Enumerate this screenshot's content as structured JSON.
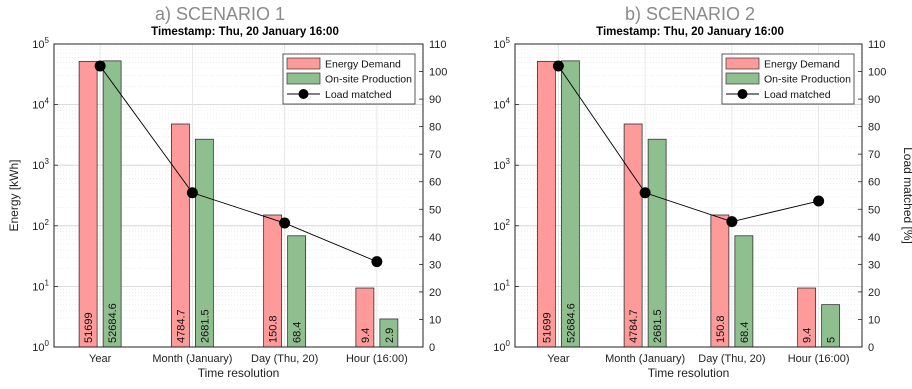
{
  "chart_data": [
    {
      "type": "bar",
      "title": "a)   SCENARIO 1",
      "subtitle": "Timestamp: Thu, 20 January 16:00",
      "xlabel": "Time resolution",
      "ylabel": "Energy [kWh]",
      "y2label": "",
      "categories": [
        "Year",
        "Month (January)",
        "Day (Thu, 20)",
        "Hour (16:00)"
      ],
      "yscale": "log",
      "ylim": [
        1,
        100000
      ],
      "yticks": [
        "10^0",
        "10^1",
        "10^2",
        "10^3",
        "10^4",
        "10^5"
      ],
      "y2lim": [
        0,
        110
      ],
      "y2ticks": [
        0,
        10,
        20,
        30,
        40,
        50,
        60,
        70,
        80,
        90,
        100,
        110
      ],
      "grid": true,
      "legend": "top-right",
      "series": [
        {
          "name": "Energy Demand",
          "color": "#ff9a9a",
          "values": [
            51699,
            4784.7,
            150.8,
            9.4
          ],
          "labels": [
            "51699",
            "4784.7",
            "150.8",
            "9.4"
          ]
        },
        {
          "name": "On-site Production",
          "color": "#8fbf8f",
          "values": [
            52684.6,
            2681.5,
            68.4,
            2.9
          ],
          "labels": [
            "52684.6",
            "2681.5",
            "68.4",
            "2.9"
          ]
        },
        {
          "name": "Load matched",
          "color": "#000000",
          "axis": "right",
          "values": [
            102,
            56,
            45,
            31
          ]
        }
      ]
    },
    {
      "type": "bar",
      "title": "b) SCENARIO 2",
      "subtitle": "Timestamp: Thu, 20 January 16:00",
      "xlabel": "Time resolution",
      "ylabel": "",
      "y2label": "Load matched [%]",
      "categories": [
        "Year",
        "Month (January)",
        "Day (Thu, 20)",
        "Hour (16:00)"
      ],
      "yscale": "log",
      "ylim": [
        1,
        100000
      ],
      "yticks": [
        "10^0",
        "10^1",
        "10^2",
        "10^3",
        "10^4",
        "10^5"
      ],
      "y2lim": [
        0,
        110
      ],
      "y2ticks": [
        0,
        10,
        20,
        30,
        40,
        50,
        60,
        70,
        80,
        90,
        100,
        110
      ],
      "grid": true,
      "legend": "top-right",
      "series": [
        {
          "name": "Energy Demand",
          "color": "#ff9a9a",
          "values": [
            51699,
            4784.7,
            150.8,
            9.4
          ],
          "labels": [
            "51699",
            "4784.7",
            "150.8",
            "9.4"
          ]
        },
        {
          "name": "On-site Production",
          "color": "#8fbf8f",
          "values": [
            52684.6,
            2681.5,
            68.4,
            5
          ],
          "labels": [
            "52684.6",
            "2681.5",
            "68.4",
            "5"
          ]
        },
        {
          "name": "Load matched",
          "color": "#000000",
          "axis": "right",
          "values": [
            102,
            56,
            45.5,
            53
          ]
        }
      ]
    }
  ]
}
